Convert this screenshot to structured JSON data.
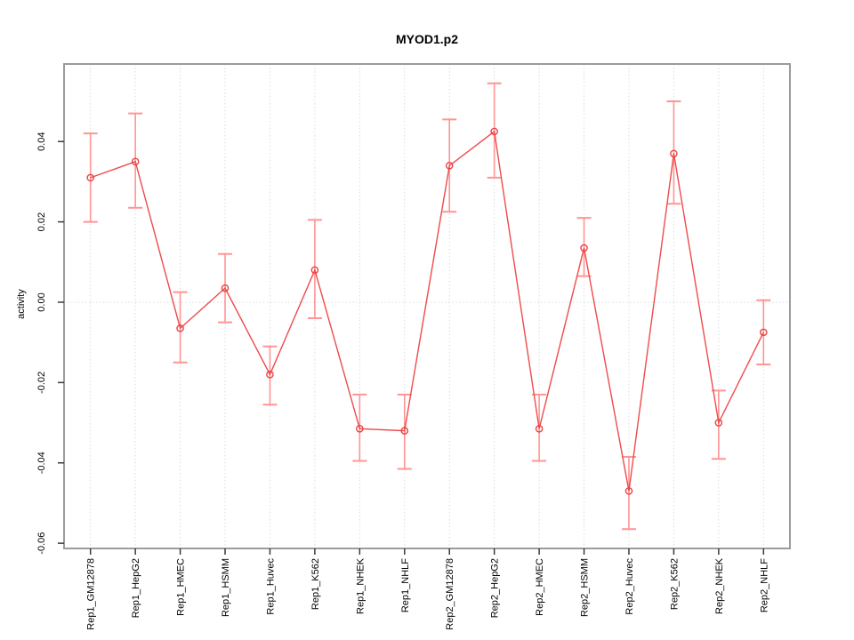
{
  "chart_data": {
    "type": "line",
    "title": "MYOD1.p2",
    "xlabel": "",
    "ylabel": "activity",
    "categories": [
      "Rep1_GM12878",
      "Rep1_HepG2",
      "Rep1_HMEC",
      "Rep1_HSMM",
      "Rep1_Huvec",
      "Rep1_K562",
      "Rep1_NHEK",
      "Rep1_NHLF",
      "Rep2_GM12878",
      "Rep2_HepG2",
      "Rep2_HMEC",
      "Rep2_HSMM",
      "Rep2_Huvec",
      "Rep2_K562",
      "Rep2_NHEK",
      "Rep2_NHLF"
    ],
    "series": [
      {
        "name": "activity",
        "values": [
          0.031,
          0.035,
          -0.0065,
          0.0035,
          -0.018,
          0.008,
          -0.0315,
          -0.032,
          0.034,
          0.0425,
          -0.0315,
          0.0135,
          -0.047,
          0.037,
          -0.03,
          -0.0075
        ],
        "upper": [
          0.042,
          0.047,
          0.0025,
          0.012,
          -0.011,
          0.0205,
          -0.023,
          -0.023,
          0.0455,
          0.0545,
          -0.023,
          0.021,
          -0.0385,
          0.05,
          -0.022,
          0.0005
        ],
        "lower": [
          0.02,
          0.0235,
          -0.015,
          -0.005,
          -0.0255,
          -0.004,
          -0.0395,
          -0.0415,
          0.0225,
          0.031,
          -0.0395,
          0.0065,
          -0.0565,
          0.0245,
          -0.039,
          -0.0155
        ]
      }
    ],
    "yticks": {
      "values": [
        0.04,
        0.02,
        0.0,
        -0.02,
        -0.04,
        -0.06
      ],
      "labels": [
        "0.04",
        "0.02",
        "0.00",
        "-0.02",
        "-0.04",
        "-0.06"
      ]
    },
    "ylim": [
      -0.0613,
      0.0593
    ],
    "grid": {
      "vertical_at_categories": true,
      "horizontal_at_zero": true,
      "style": "dotted"
    },
    "legend": "none",
    "colors": {
      "series_line": "#ee4b4b",
      "error_bar": "#ff9494",
      "marker_stroke": "#e94444",
      "grid": "#dcdcdc",
      "box": "#9c9c9c",
      "tick": "#3a3a3a",
      "text": "#000000"
    }
  }
}
